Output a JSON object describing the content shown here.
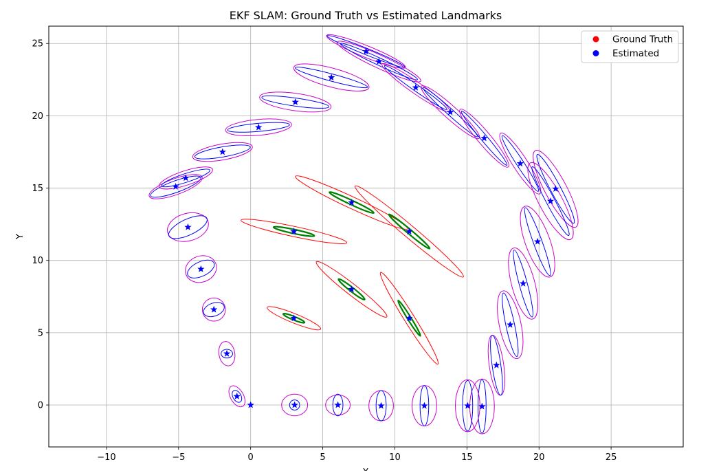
{
  "chart_data": {
    "type": "scatter",
    "title": "EKF SLAM: Ground Truth vs Estimated Landmarks",
    "xlabel": "X",
    "ylabel": "Y",
    "xlim": [
      -14.0,
      30.0
    ],
    "ylim": [
      -2.9,
      26.2
    ],
    "xticks": [
      -10,
      -5,
      0,
      5,
      10,
      15,
      20,
      25
    ],
    "yticks": [
      0,
      5,
      10,
      15,
      20,
      25
    ],
    "grid": true,
    "legend_position": "top-right",
    "legend": [
      {
        "label": "Ground Truth",
        "color": "#ff0000"
      },
      {
        "label": "Estimated",
        "color": "#0000ff"
      }
    ],
    "colors": {
      "trajectory_marker": "#0000ff",
      "trajectory_inner_ellipse": "#0000ff",
      "trajectory_outer_ellipse": "#cc00cc",
      "landmark_inner_ellipse": "#008000",
      "landmark_outer_ellipse": "#ff0000",
      "grid": "#b0b0b0"
    },
    "trajectory": [
      {
        "x": 0.0,
        "y": 0.0,
        "inner": [
          0.01,
          0.01,
          0
        ],
        "outer": [
          0.01,
          0.01,
          0
        ]
      },
      {
        "x": -0.95,
        "y": 0.6,
        "inner": [
          0.28,
          0.45,
          30
        ],
        "outer": [
          0.45,
          0.8,
          30
        ]
      },
      {
        "x": -1.65,
        "y": 3.55,
        "inner": [
          0.4,
          0.3,
          0
        ],
        "outer": [
          0.55,
          0.85,
          10
        ]
      },
      {
        "x": -2.55,
        "y": 6.6,
        "inner": [
          0.75,
          0.45,
          20
        ],
        "outer": [
          0.8,
          0.8,
          0
        ]
      },
      {
        "x": -3.45,
        "y": 9.4,
        "inner": [
          1.0,
          0.5,
          25
        ],
        "outer": [
          1.1,
          0.9,
          20
        ]
      },
      {
        "x": -4.35,
        "y": 12.3,
        "inner": [
          1.45,
          0.55,
          25
        ],
        "outer": [
          1.45,
          0.95,
          15
        ]
      },
      {
        "x": -5.2,
        "y": 15.1,
        "inner": [
          1.85,
          0.4,
          20
        ],
        "outer": [
          1.95,
          0.55,
          20
        ]
      },
      {
        "x": -4.5,
        "y": 15.7,
        "inner": [
          1.75,
          0.3,
          18
        ],
        "outer": [
          1.95,
          0.5,
          18
        ]
      },
      {
        "x": -1.95,
        "y": 17.5,
        "inner": [
          1.95,
          0.35,
          10
        ],
        "outer": [
          2.1,
          0.55,
          10
        ]
      },
      {
        "x": 0.55,
        "y": 19.2,
        "inner": [
          2.15,
          0.28,
          5
        ],
        "outer": [
          2.3,
          0.55,
          5
        ]
      },
      {
        "x": 3.1,
        "y": 20.95,
        "inner": [
          2.35,
          0.28,
          -8
        ],
        "outer": [
          2.5,
          0.6,
          -8
        ]
      },
      {
        "x": 5.6,
        "y": 22.65,
        "inner": [
          2.6,
          0.25,
          -15
        ],
        "outer": [
          2.7,
          0.65,
          -15
        ]
      },
      {
        "x": 8.0,
        "y": 24.45,
        "inner": [
          2.9,
          0.22,
          -22
        ],
        "outer": [
          2.95,
          0.4,
          -22
        ]
      },
      {
        "x": 8.9,
        "y": 23.75,
        "inner": [
          2.95,
          0.25,
          -25
        ],
        "outer": [
          3.2,
          0.45,
          -25
        ]
      },
      {
        "x": 11.45,
        "y": 21.95,
        "inner": [
          2.65,
          0.22,
          -35
        ],
        "outer": [
          2.85,
          0.4,
          -35
        ]
      },
      {
        "x": 13.85,
        "y": 20.25,
        "inner": [
          2.55,
          0.22,
          -42
        ],
        "outer": [
          2.7,
          0.45,
          -42
        ]
      },
      {
        "x": 16.2,
        "y": 18.45,
        "inner": [
          2.45,
          0.22,
          -50
        ],
        "outer": [
          2.6,
          0.45,
          -50
        ]
      },
      {
        "x": 18.7,
        "y": 16.7,
        "inner": [
          2.3,
          0.25,
          -57
        ],
        "outer": [
          2.5,
          0.5,
          -57
        ]
      },
      {
        "x": 21.15,
        "y": 14.95,
        "inner": [
          2.7,
          0.35,
          -62
        ],
        "outer": [
          3.0,
          0.75,
          -62
        ]
      },
      {
        "x": 20.8,
        "y": 14.1,
        "inner": [
          2.7,
          0.3,
          -62
        ],
        "outer": [
          3.0,
          0.8,
          -62
        ]
      },
      {
        "x": 19.9,
        "y": 11.3,
        "inner": [
          2.5,
          0.3,
          -70
        ],
        "outer": [
          2.6,
          0.85,
          -70
        ]
      },
      {
        "x": 18.9,
        "y": 8.4,
        "inner": [
          2.4,
          0.28,
          -75
        ],
        "outer": [
          2.55,
          0.8,
          -75
        ]
      },
      {
        "x": 18.0,
        "y": 5.55,
        "inner": [
          2.25,
          0.3,
          -78
        ],
        "outer": [
          2.4,
          0.75,
          -78
        ]
      },
      {
        "x": 17.05,
        "y": 2.75,
        "inner": [
          2.1,
          0.3,
          -82
        ],
        "outer": [
          2.1,
          0.5,
          -82
        ]
      },
      {
        "x": 16.05,
        "y": -0.1,
        "inner": [
          1.85,
          0.28,
          -90
        ],
        "outer": [
          1.9,
          0.85,
          -90
        ]
      },
      {
        "x": 15.05,
        "y": -0.05,
        "inner": [
          1.75,
          0.35,
          -90
        ],
        "outer": [
          1.8,
          0.85,
          -90
        ]
      },
      {
        "x": 12.05,
        "y": -0.05,
        "inner": [
          1.4,
          0.3,
          -90
        ],
        "outer": [
          1.4,
          0.85,
          -90
        ]
      },
      {
        "x": 9.05,
        "y": -0.05,
        "inner": [
          1.05,
          0.35,
          -90
        ],
        "outer": [
          1.05,
          0.85,
          -90
        ]
      },
      {
        "x": 6.05,
        "y": 0.0,
        "inner": [
          0.75,
          0.35,
          -90
        ],
        "outer": [
          0.7,
          0.85,
          -90
        ]
      },
      {
        "x": 3.05,
        "y": 0.0,
        "inner": [
          0.35,
          0.35,
          0
        ],
        "outer": [
          0.75,
          0.9,
          -90
        ]
      }
    ],
    "landmarks": [
      {
        "x": 3.0,
        "y": 12.0,
        "inner": [
          1.45,
          0.14,
          -12
        ],
        "outer": [
          3.75,
          0.35,
          -12
        ]
      },
      {
        "x": 7.0,
        "y": 14.0,
        "inner": [
          1.7,
          0.15,
          -25
        ],
        "outer": [
          4.3,
          0.4,
          -25
        ]
      },
      {
        "x": 11.0,
        "y": 12.0,
        "inner": [
          1.85,
          0.15,
          -40
        ],
        "outer": [
          4.9,
          0.42,
          -40
        ]
      },
      {
        "x": 3.0,
        "y": 6.0,
        "inner": [
          0.8,
          0.12,
          -22
        ],
        "outer": [
          2.0,
          0.32,
          -22
        ]
      },
      {
        "x": 7.0,
        "y": 8.0,
        "inner": [
          1.15,
          0.14,
          -38
        ],
        "outer": [
          3.1,
          0.38,
          -38
        ]
      },
      {
        "x": 11.0,
        "y": 6.0,
        "inner": [
          1.45,
          0.12,
          -58
        ],
        "outer": [
          3.75,
          0.35,
          -58
        ]
      }
    ]
  }
}
